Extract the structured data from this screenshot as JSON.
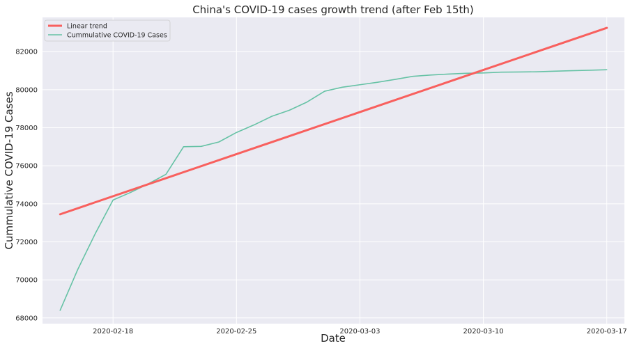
{
  "chart_data": {
    "type": "line",
    "title": "China's COVID-19 cases growth trend (after Feb 15th)",
    "xlabel": "Date",
    "ylabel": "Cummulative COVID-19 Cases",
    "x_type": "date",
    "xlim": [
      "2020-02-14",
      "2020-03-18"
    ],
    "ylim": [
      67700,
      83800
    ],
    "x_ticks": [
      "2020-02-18",
      "2020-02-25",
      "2020-03-03",
      "2020-03-10",
      "2020-03-17"
    ],
    "y_ticks": [
      68000,
      70000,
      72000,
      74000,
      76000,
      78000,
      80000,
      82000
    ],
    "grid": true,
    "legend": "top-left",
    "series": [
      {
        "name": "Linear trend",
        "color": "#f8605e",
        "x": [
          "2020-02-15",
          "2020-03-17"
        ],
        "y": [
          73450,
          83250
        ]
      },
      {
        "name": "Cummulative COVID-19 Cases",
        "color": "#66c2a5",
        "x": [
          "2020-02-15",
          "2020-02-16",
          "2020-02-17",
          "2020-02-18",
          "2020-02-19",
          "2020-02-20",
          "2020-02-21",
          "2020-02-22",
          "2020-02-23",
          "2020-02-24",
          "2020-02-25",
          "2020-02-26",
          "2020-02-27",
          "2020-02-28",
          "2020-02-29",
          "2020-03-01",
          "2020-03-02",
          "2020-03-03",
          "2020-03-04",
          "2020-03-05",
          "2020-03-06",
          "2020-03-07",
          "2020-03-08",
          "2020-03-09",
          "2020-03-10",
          "2020-03-11",
          "2020-03-12",
          "2020-03-13",
          "2020-03-14",
          "2020-03-15",
          "2020-03-16",
          "2020-03-17"
        ],
        "y": [
          68400,
          70550,
          72450,
          74200,
          74600,
          75050,
          75550,
          77000,
          77020,
          77250,
          77750,
          78150,
          78600,
          78920,
          79350,
          79920,
          80130,
          80260,
          80390,
          80540,
          80700,
          80770,
          80820,
          80860,
          80880,
          80920,
          80930,
          80940,
          80970,
          81000,
          81020,
          81050
        ]
      }
    ]
  }
}
